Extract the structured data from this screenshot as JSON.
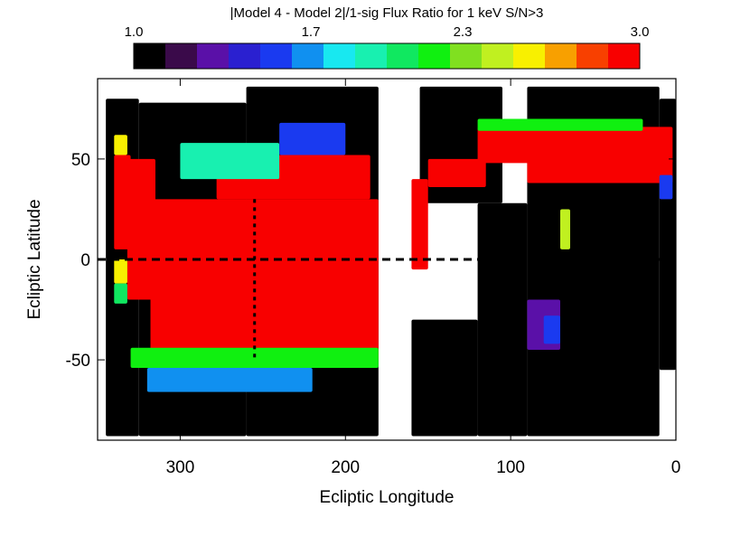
{
  "chart_data": {
    "type": "heatmap",
    "title": "|Model 4 - Model 2|/1-sig Flux Ratio for 1 keV S/N>3",
    "xlabel": "Ecliptic Longitude",
    "ylabel": "Ecliptic Latitude",
    "xlim": [
      350,
      0
    ],
    "ylim": [
      -90,
      90
    ],
    "x_reversed": true,
    "xticks": [
      300,
      200,
      100,
      0
    ],
    "yticks": [
      50,
      0,
      -50
    ],
    "reference_lines": [
      {
        "orientation": "horizontal",
        "value": 0,
        "style": "dashed"
      },
      {
        "orientation": "vertical",
        "value": 255,
        "style": "dotted",
        "y_range": [
          -50,
          30
        ]
      }
    ],
    "colorbar": {
      "min": 1.0,
      "max": 3.0,
      "tick_labels": [
        "1.0",
        "1.7",
        "2.3",
        "3.0"
      ],
      "tick_values": [
        1.0,
        1.7,
        2.3,
        3.0
      ],
      "colors": [
        "#000000",
        "#3a0a4a",
        "#5a10a8",
        "#2a20d0",
        "#1a3af0",
        "#1090f0",
        "#18e8f0",
        "#18f0b0",
        "#10e860",
        "#10f010",
        "#80e020",
        "#c0f020",
        "#f8f000",
        "#f8a000",
        "#f84000",
        "#f80000"
      ]
    },
    "blocks": [
      {
        "lon": [
          345,
          325
        ],
        "lat": [
          80,
          -88
        ],
        "value": 1.0
      },
      {
        "lon": [
          325,
          260
        ],
        "lat": [
          78,
          -88
        ],
        "value": 1.0
      },
      {
        "lon": [
          260,
          180
        ],
        "lat": [
          86,
          -88
        ],
        "value": 1.0
      },
      {
        "lon": [
          155,
          105
        ],
        "lat": [
          86,
          28
        ],
        "value": 1.0
      },
      {
        "lon": [
          160,
          120
        ],
        "lat": [
          -30,
          -88
        ],
        "value": 1.0
      },
      {
        "lon": [
          120,
          90
        ],
        "lat": [
          28,
          -88
        ],
        "value": 1.0
      },
      {
        "lon": [
          90,
          10
        ],
        "lat": [
          86,
          -88
        ],
        "value": 1.0
      },
      {
        "lon": [
          10,
          0
        ],
        "lat": [
          80,
          -55
        ],
        "value": 1.0
      },
      {
        "lon": [
          340,
          330
        ],
        "lat": [
          52,
          5
        ],
        "value": 3.0
      },
      {
        "lon": [
          332,
          315
        ],
        "lat": [
          50,
          -20
        ],
        "value": 3.0
      },
      {
        "lon": [
          318,
          180
        ],
        "lat": [
          30,
          -50
        ],
        "value": 3.0
      },
      {
        "lon": [
          278,
          185
        ],
        "lat": [
          52,
          30
        ],
        "value": 3.0
      },
      {
        "lon": [
          160,
          150
        ],
        "lat": [
          40,
          -5
        ],
        "value": 3.0
      },
      {
        "lon": [
          150,
          115
        ],
        "lat": [
          50,
          36
        ],
        "value": 3.0
      },
      {
        "lon": [
          120,
          2
        ],
        "lat": [
          66,
          48
        ],
        "value": 3.0
      },
      {
        "lon": [
          90,
          2
        ],
        "lat": [
          50,
          38
        ],
        "value": 3.0
      },
      {
        "lon": [
          340,
          332
        ],
        "lat": [
          62,
          52
        ],
        "value": 2.6
      },
      {
        "lon": [
          340,
          332
        ],
        "lat": [
          0,
          -12
        ],
        "value": 2.5
      },
      {
        "lon": [
          340,
          332
        ],
        "lat": [
          -12,
          -22
        ],
        "value": 2.0
      },
      {
        "lon": [
          330,
          180
        ],
        "lat": [
          -44,
          -54
        ],
        "value": 2.2
      },
      {
        "lon": [
          320,
          220
        ],
        "lat": [
          -54,
          -66
        ],
        "value": 1.7
      },
      {
        "lon": [
          300,
          240
        ],
        "lat": [
          58,
          40
        ],
        "value": 1.9
      },
      {
        "lon": [
          240,
          200
        ],
        "lat": [
          68,
          52
        ],
        "value": 1.6
      },
      {
        "lon": [
          120,
          20
        ],
        "lat": [
          70,
          64
        ],
        "value": 2.2
      },
      {
        "lon": [
          90,
          70
        ],
        "lat": [
          -20,
          -45
        ],
        "value": 1.3
      },
      {
        "lon": [
          80,
          70
        ],
        "lat": [
          -28,
          -42
        ],
        "value": 1.5
      },
      {
        "lon": [
          70,
          64
        ],
        "lat": [
          25,
          5
        ],
        "value": 2.4
      },
      {
        "lon": [
          10,
          2
        ],
        "lat": [
          42,
          30
        ],
        "value": 1.6
      }
    ]
  }
}
